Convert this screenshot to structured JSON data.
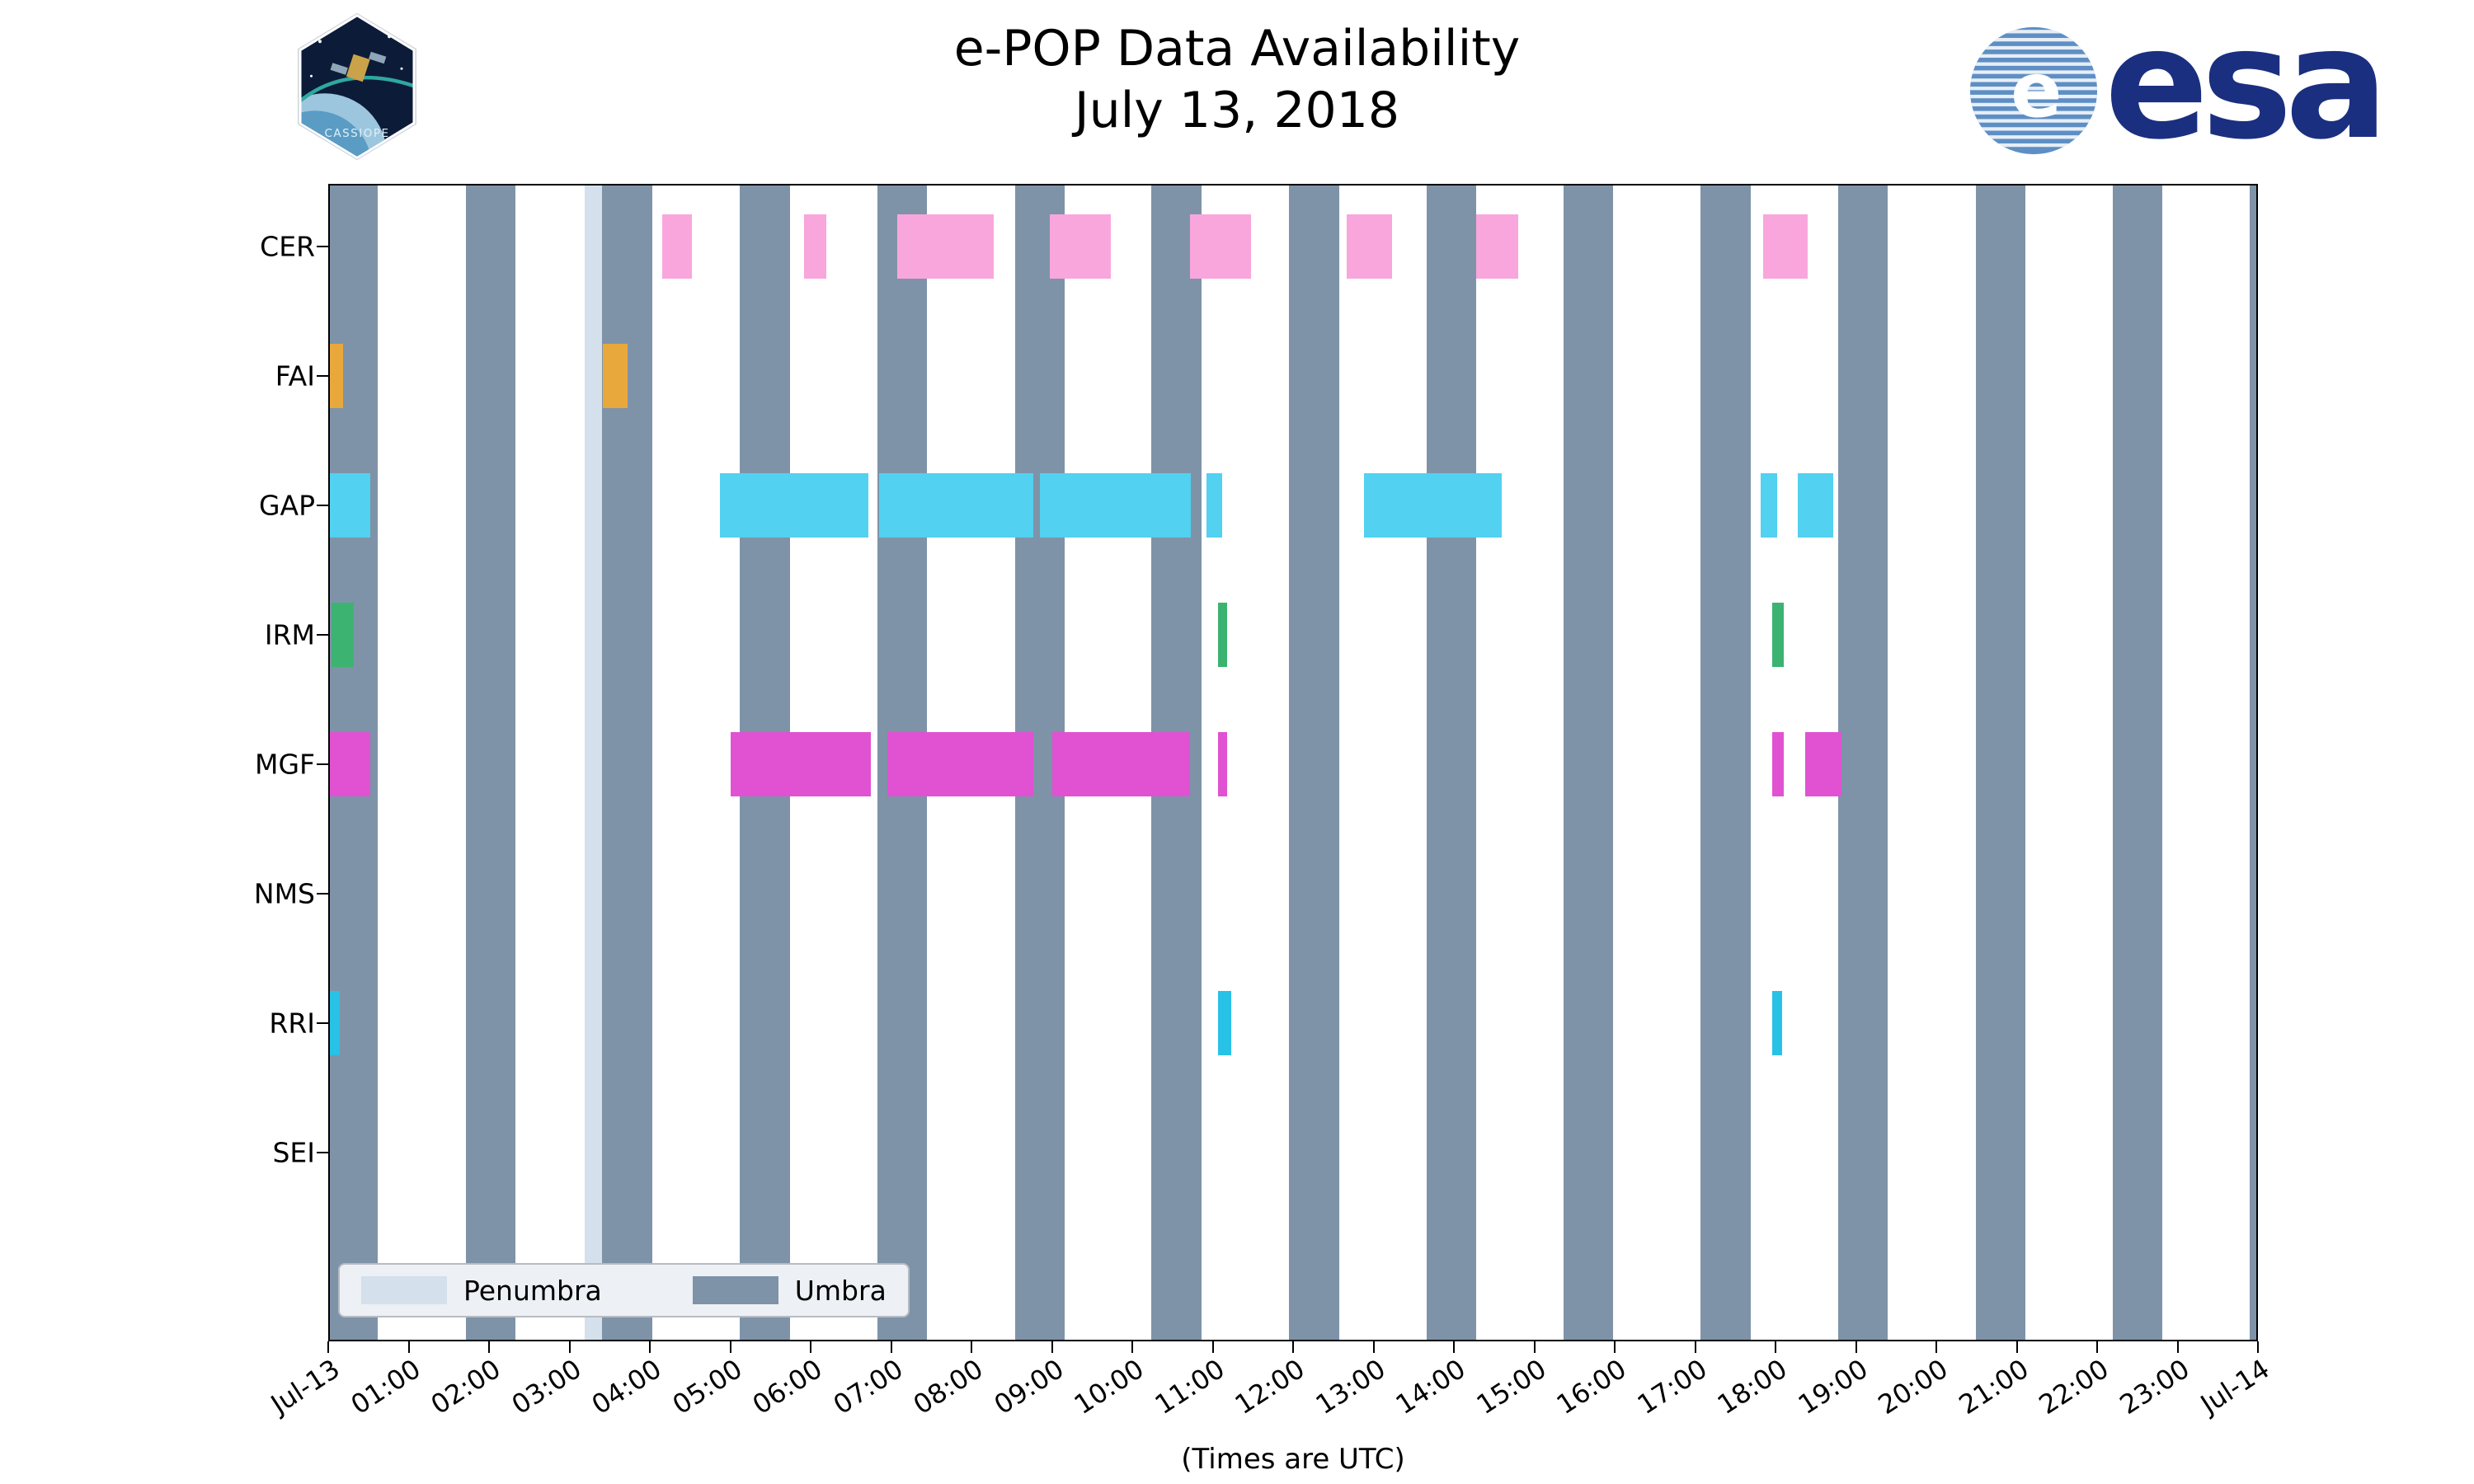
{
  "header": {
    "cassiope_label": "CASSIOPE",
    "esa_wordmark": "esa"
  },
  "chart_data": {
    "type": "bar",
    "subtype": "broken_barh_availability_timeline",
    "title": "e-POP Data Availability",
    "subtitle": "July 13, 2018",
    "xlabel": "(Times are UTC)",
    "x_range": [
      0,
      24
    ],
    "x_tick_hours": [
      0,
      1,
      2,
      3,
      4,
      5,
      6,
      7,
      8,
      9,
      10,
      11,
      12,
      13,
      14,
      15,
      16,
      17,
      18,
      19,
      20,
      21,
      22,
      23,
      24
    ],
    "x_tick_labels": [
      "Jul-13",
      "01:00",
      "02:00",
      "03:00",
      "04:00",
      "05:00",
      "06:00",
      "07:00",
      "08:00",
      "09:00",
      "10:00",
      "11:00",
      "12:00",
      "13:00",
      "14:00",
      "15:00",
      "16:00",
      "17:00",
      "18:00",
      "19:00",
      "20:00",
      "21:00",
      "22:00",
      "23:00",
      "Jul-14"
    ],
    "rows": [
      "CER",
      "FAI",
      "GAP",
      "IRM",
      "MGF",
      "NMS",
      "RRI",
      "SEI"
    ],
    "colors": {
      "umbra": "#7e93a8",
      "penumbra": "#d4e0ec",
      "CER": "#f9a6dc",
      "FAI": "#e9a83c",
      "GAP": "#52d1f0",
      "IRM": "#3cb371",
      "MGF": "#e052d2",
      "NMS": "#bbbbbb",
      "RRI": "#28c2e6",
      "SEI": "#bbbbbb"
    },
    "umbra_intervals_hours": [
      [
        0.0,
        0.62
      ],
      [
        1.71,
        2.33
      ],
      [
        3.41,
        4.03
      ],
      [
        5.12,
        5.74
      ],
      [
        6.83,
        7.45
      ],
      [
        8.54,
        9.16
      ],
      [
        10.24,
        10.86
      ],
      [
        11.95,
        12.57
      ],
      [
        13.66,
        14.28
      ],
      [
        15.36,
        15.98
      ],
      [
        17.07,
        17.69
      ],
      [
        18.78,
        19.4
      ],
      [
        20.49,
        21.11
      ],
      [
        22.19,
        22.81
      ],
      [
        23.9,
        24.0
      ]
    ],
    "penumbra_intervals_hours": [
      [
        3.19,
        3.41
      ]
    ],
    "availability_hours": {
      "CER": [
        [
          4.15,
          4.52
        ],
        [
          5.92,
          6.2
        ],
        [
          7.08,
          8.28
        ],
        [
          8.97,
          9.73
        ],
        [
          10.72,
          11.48
        ],
        [
          12.67,
          13.23
        ],
        [
          14.28,
          14.8
        ],
        [
          17.85,
          18.4
        ]
      ],
      "FAI": [
        [
          0.02,
          0.18
        ],
        [
          3.42,
          3.72
        ]
      ],
      "GAP": [
        [
          0.0,
          0.52
        ],
        [
          4.87,
          6.72
        ],
        [
          6.85,
          8.77
        ],
        [
          8.85,
          10.73
        ],
        [
          10.92,
          11.12
        ],
        [
          12.88,
          14.6
        ],
        [
          17.82,
          18.02
        ],
        [
          18.28,
          18.72
        ]
      ],
      "IRM": [
        [
          0.04,
          0.32
        ],
        [
          11.07,
          11.18
        ],
        [
          17.96,
          18.1
        ]
      ],
      "MGF": [
        [
          0.0,
          0.52
        ],
        [
          5.0,
          6.75
        ],
        [
          6.95,
          8.77
        ],
        [
          9.0,
          10.72
        ],
        [
          11.07,
          11.18
        ],
        [
          17.96,
          18.1
        ],
        [
          18.37,
          18.82
        ]
      ],
      "NMS": [],
      "RRI": [
        [
          0.02,
          0.14
        ],
        [
          11.07,
          11.23
        ],
        [
          17.96,
          18.08
        ]
      ],
      "SEI": []
    },
    "legend": {
      "items": [
        {
          "label": "Penumbra",
          "color_key": "penumbra"
        },
        {
          "label": "Umbra",
          "color_key": "umbra"
        }
      ]
    }
  }
}
